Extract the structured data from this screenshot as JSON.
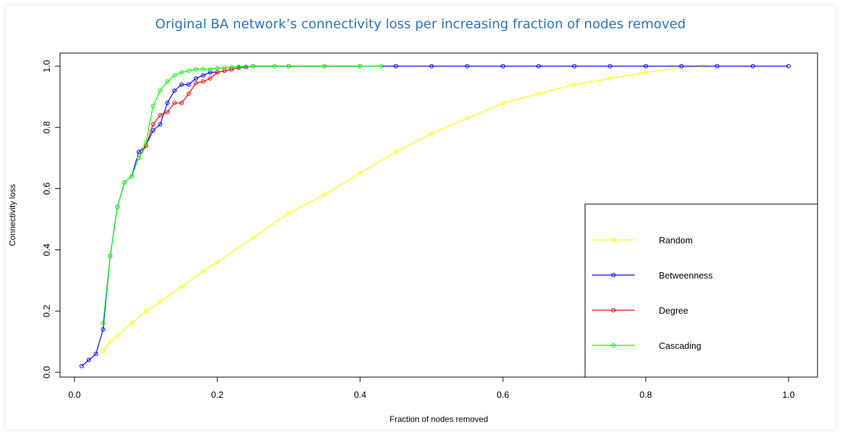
{
  "chart_data": {
    "type": "line",
    "title": "Original BA network’s connectivity loss per increasing fraction of nodes removed",
    "xlabel": "Fraction of nodes removed",
    "ylabel": "Connectivity loss",
    "xlim": [
      0,
      1
    ],
    "ylim": [
      0,
      1
    ],
    "xticks": [
      0.0,
      0.2,
      0.4,
      0.6,
      0.8,
      1.0
    ],
    "yticks": [
      0.0,
      0.2,
      0.4,
      0.6,
      0.8,
      1.0
    ],
    "xtick_labels": [
      "0.0",
      "0.2",
      "0.4",
      "0.6",
      "0.8",
      "1.0"
    ],
    "ytick_labels": [
      "0.0",
      "0.2",
      "0.4",
      "0.6",
      "0.8",
      "1.0"
    ],
    "grid": false,
    "legend_position": "bottom-right",
    "series": [
      {
        "name": "Random",
        "color": "#FFFF00",
        "x": [
          0.04,
          0.05,
          0.06,
          0.08,
          0.1,
          0.12,
          0.15,
          0.18,
          0.2,
          0.25,
          0.3,
          0.35,
          0.4,
          0.45,
          0.5,
          0.55,
          0.6,
          0.65,
          0.7,
          0.75,
          0.8,
          0.85,
          0.88
        ],
        "y": [
          0.07,
          0.1,
          0.12,
          0.16,
          0.2,
          0.23,
          0.28,
          0.33,
          0.36,
          0.44,
          0.52,
          0.58,
          0.65,
          0.72,
          0.78,
          0.83,
          0.88,
          0.91,
          0.94,
          0.96,
          0.98,
          0.995,
          1.0
        ]
      },
      {
        "name": "Betweenness",
        "color": "#0000FF",
        "x": [
          0.01,
          0.02,
          0.03,
          0.04,
          0.05,
          0.06,
          0.07,
          0.08,
          0.09,
          0.1,
          0.11,
          0.12,
          0.13,
          0.14,
          0.15,
          0.16,
          0.17,
          0.18,
          0.19,
          0.2,
          0.21,
          0.22,
          0.23,
          0.24,
          0.25,
          0.3,
          0.35,
          0.4,
          0.45,
          0.5,
          0.55,
          0.6,
          0.65,
          0.7,
          0.75,
          0.8,
          0.85,
          0.9,
          0.95,
          1.0
        ],
        "y": [
          0.02,
          0.04,
          0.06,
          0.14,
          0.38,
          0.54,
          0.62,
          0.64,
          0.72,
          0.74,
          0.79,
          0.81,
          0.88,
          0.92,
          0.94,
          0.94,
          0.96,
          0.97,
          0.98,
          0.98,
          0.985,
          0.99,
          0.995,
          0.997,
          1.0,
          1.0,
          1.0,
          1.0,
          1.0,
          1.0,
          1.0,
          1.0,
          1.0,
          1.0,
          1.0,
          1.0,
          1.0,
          1.0,
          1.0,
          1.0
        ]
      },
      {
        "name": "Degree",
        "color": "#FF0000",
        "x": [
          0.09,
          0.1,
          0.11,
          0.12,
          0.13,
          0.14,
          0.15,
          0.16,
          0.17,
          0.18,
          0.19,
          0.2,
          0.21,
          0.22,
          0.23,
          0.25,
          0.3,
          0.35,
          0.4
        ],
        "y": [
          0.7,
          0.74,
          0.81,
          0.84,
          0.85,
          0.88,
          0.88,
          0.91,
          0.945,
          0.95,
          0.96,
          0.98,
          0.985,
          0.99,
          0.995,
          1.0,
          1.0,
          1.0,
          1.0
        ]
      },
      {
        "name": "Cascading",
        "color": "#00FF00",
        "x": [
          0.04,
          0.05,
          0.06,
          0.07,
          0.08,
          0.09,
          0.1,
          0.11,
          0.12,
          0.13,
          0.14,
          0.15,
          0.16,
          0.17,
          0.18,
          0.19,
          0.2,
          0.21,
          0.22,
          0.23,
          0.25,
          0.28,
          0.3,
          0.35,
          0.4,
          0.43
        ],
        "y": [
          0.16,
          0.38,
          0.54,
          0.62,
          0.64,
          0.7,
          0.75,
          0.87,
          0.92,
          0.95,
          0.97,
          0.98,
          0.985,
          0.99,
          0.99,
          0.99,
          0.993,
          0.995,
          0.997,
          0.998,
          1.0,
          1.0,
          1.0,
          1.0,
          1.0,
          1.0
        ]
      }
    ]
  }
}
